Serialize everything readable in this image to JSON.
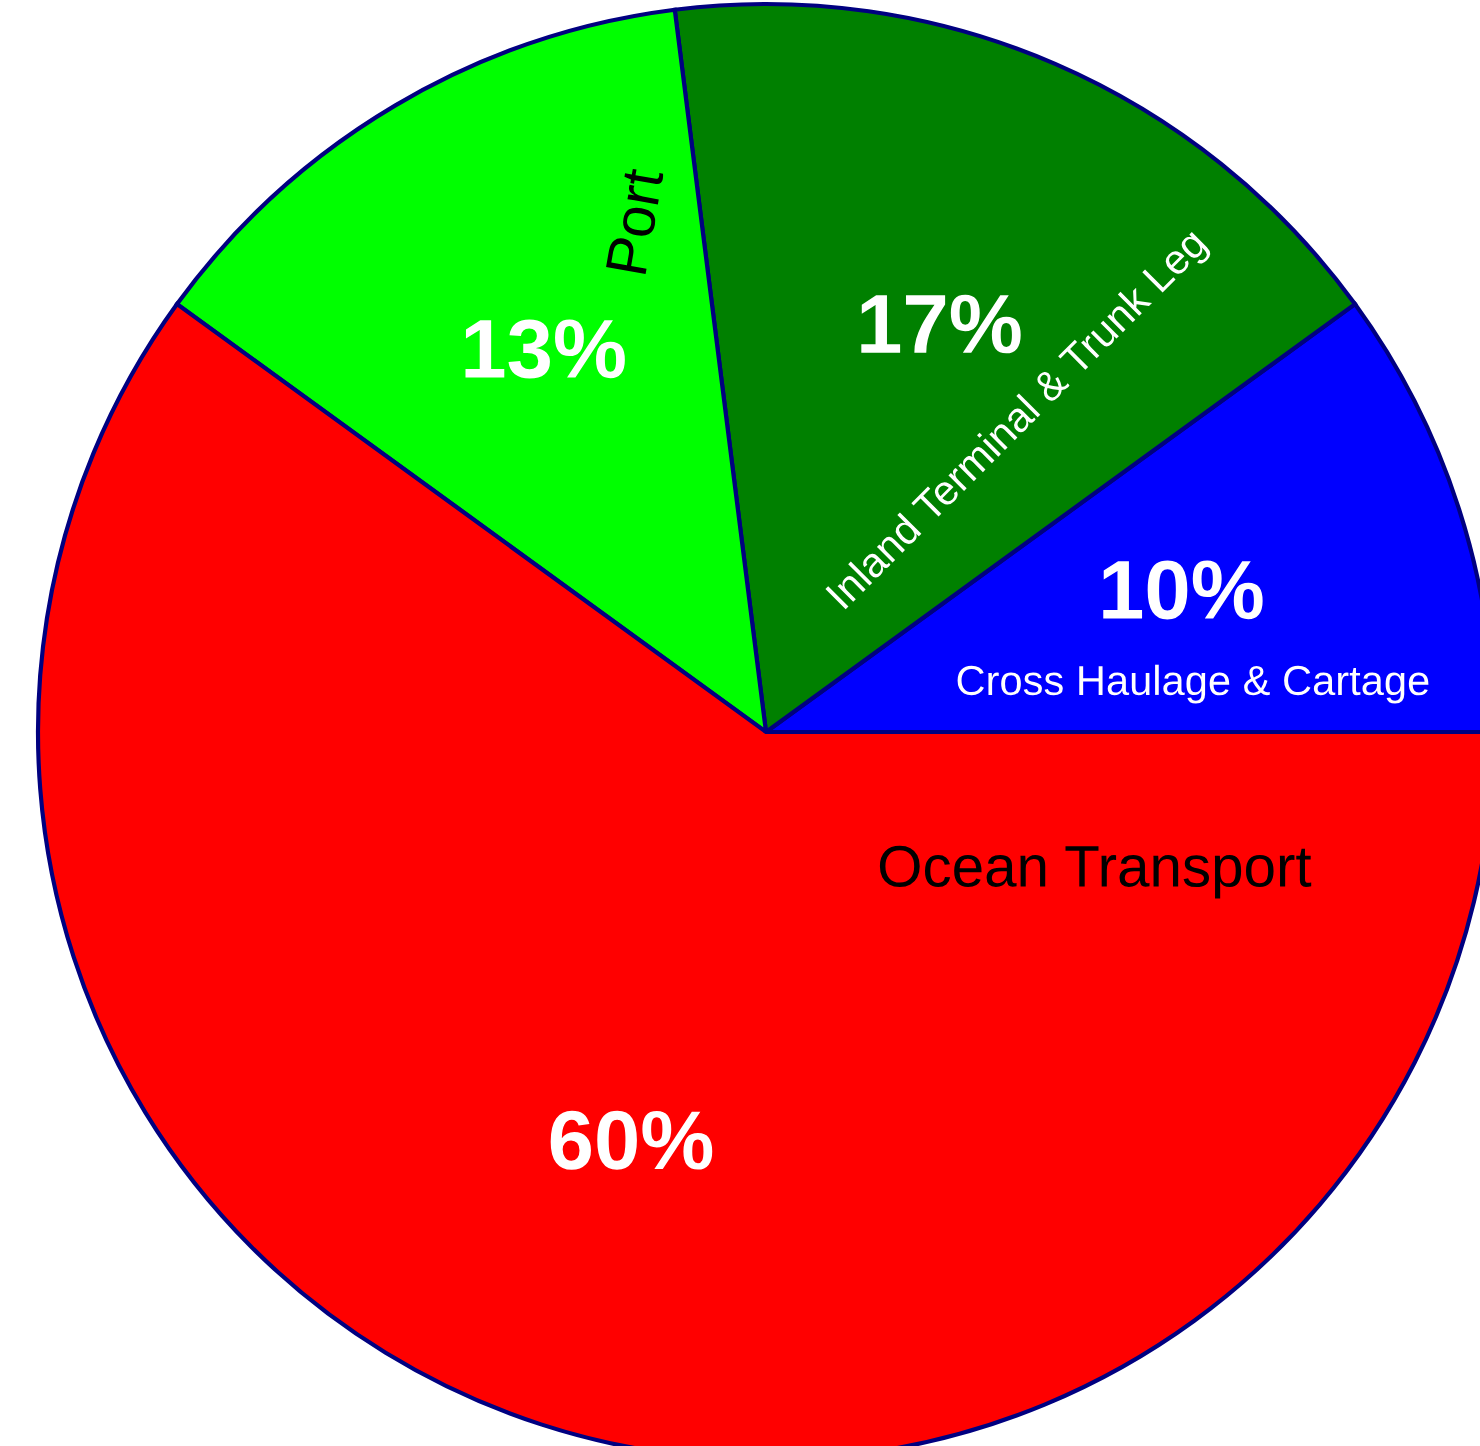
{
  "chart_data": {
    "type": "pie",
    "categories": [
      "Cross Haulage & Cartage",
      "Inland Terminal & Trunk Leg",
      "Port",
      "Ocean Transport"
    ],
    "values": [
      10,
      17,
      13,
      60
    ],
    "colors": [
      "#0000ff",
      "#008000",
      "#00ff00",
      "#ff0000"
    ],
    "value_labels": [
      "10%",
      "17%",
      "13%",
      "60%"
    ]
  }
}
